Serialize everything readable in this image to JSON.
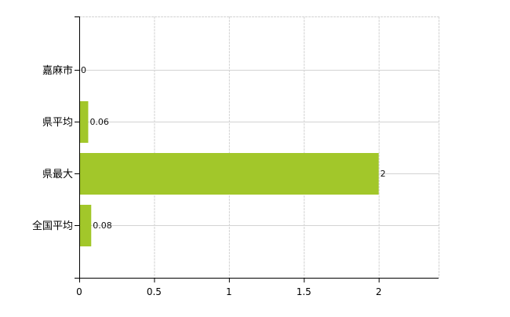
{
  "chart_data": {
    "type": "bar",
    "orientation": "horizontal",
    "categories": [
      "嘉麻市",
      "県平均",
      "県最大",
      "全国平均"
    ],
    "values": [
      0,
      0.06,
      2,
      0.08
    ],
    "data_labels": [
      "0",
      "0.06",
      "2",
      "0.08"
    ],
    "xlim": [
      0,
      2.4
    ],
    "xticks": [
      0,
      0.5,
      1,
      1.5,
      2
    ],
    "xtick_labels": [
      "0",
      "0.5",
      "1",
      "1.5",
      "2"
    ],
    "grid": true,
    "legend": "none",
    "colors": {
      "bar": "#a2c72a",
      "axis": "#000000",
      "grid": "#d3d3d3",
      "tick_label": "#000000"
    }
  }
}
